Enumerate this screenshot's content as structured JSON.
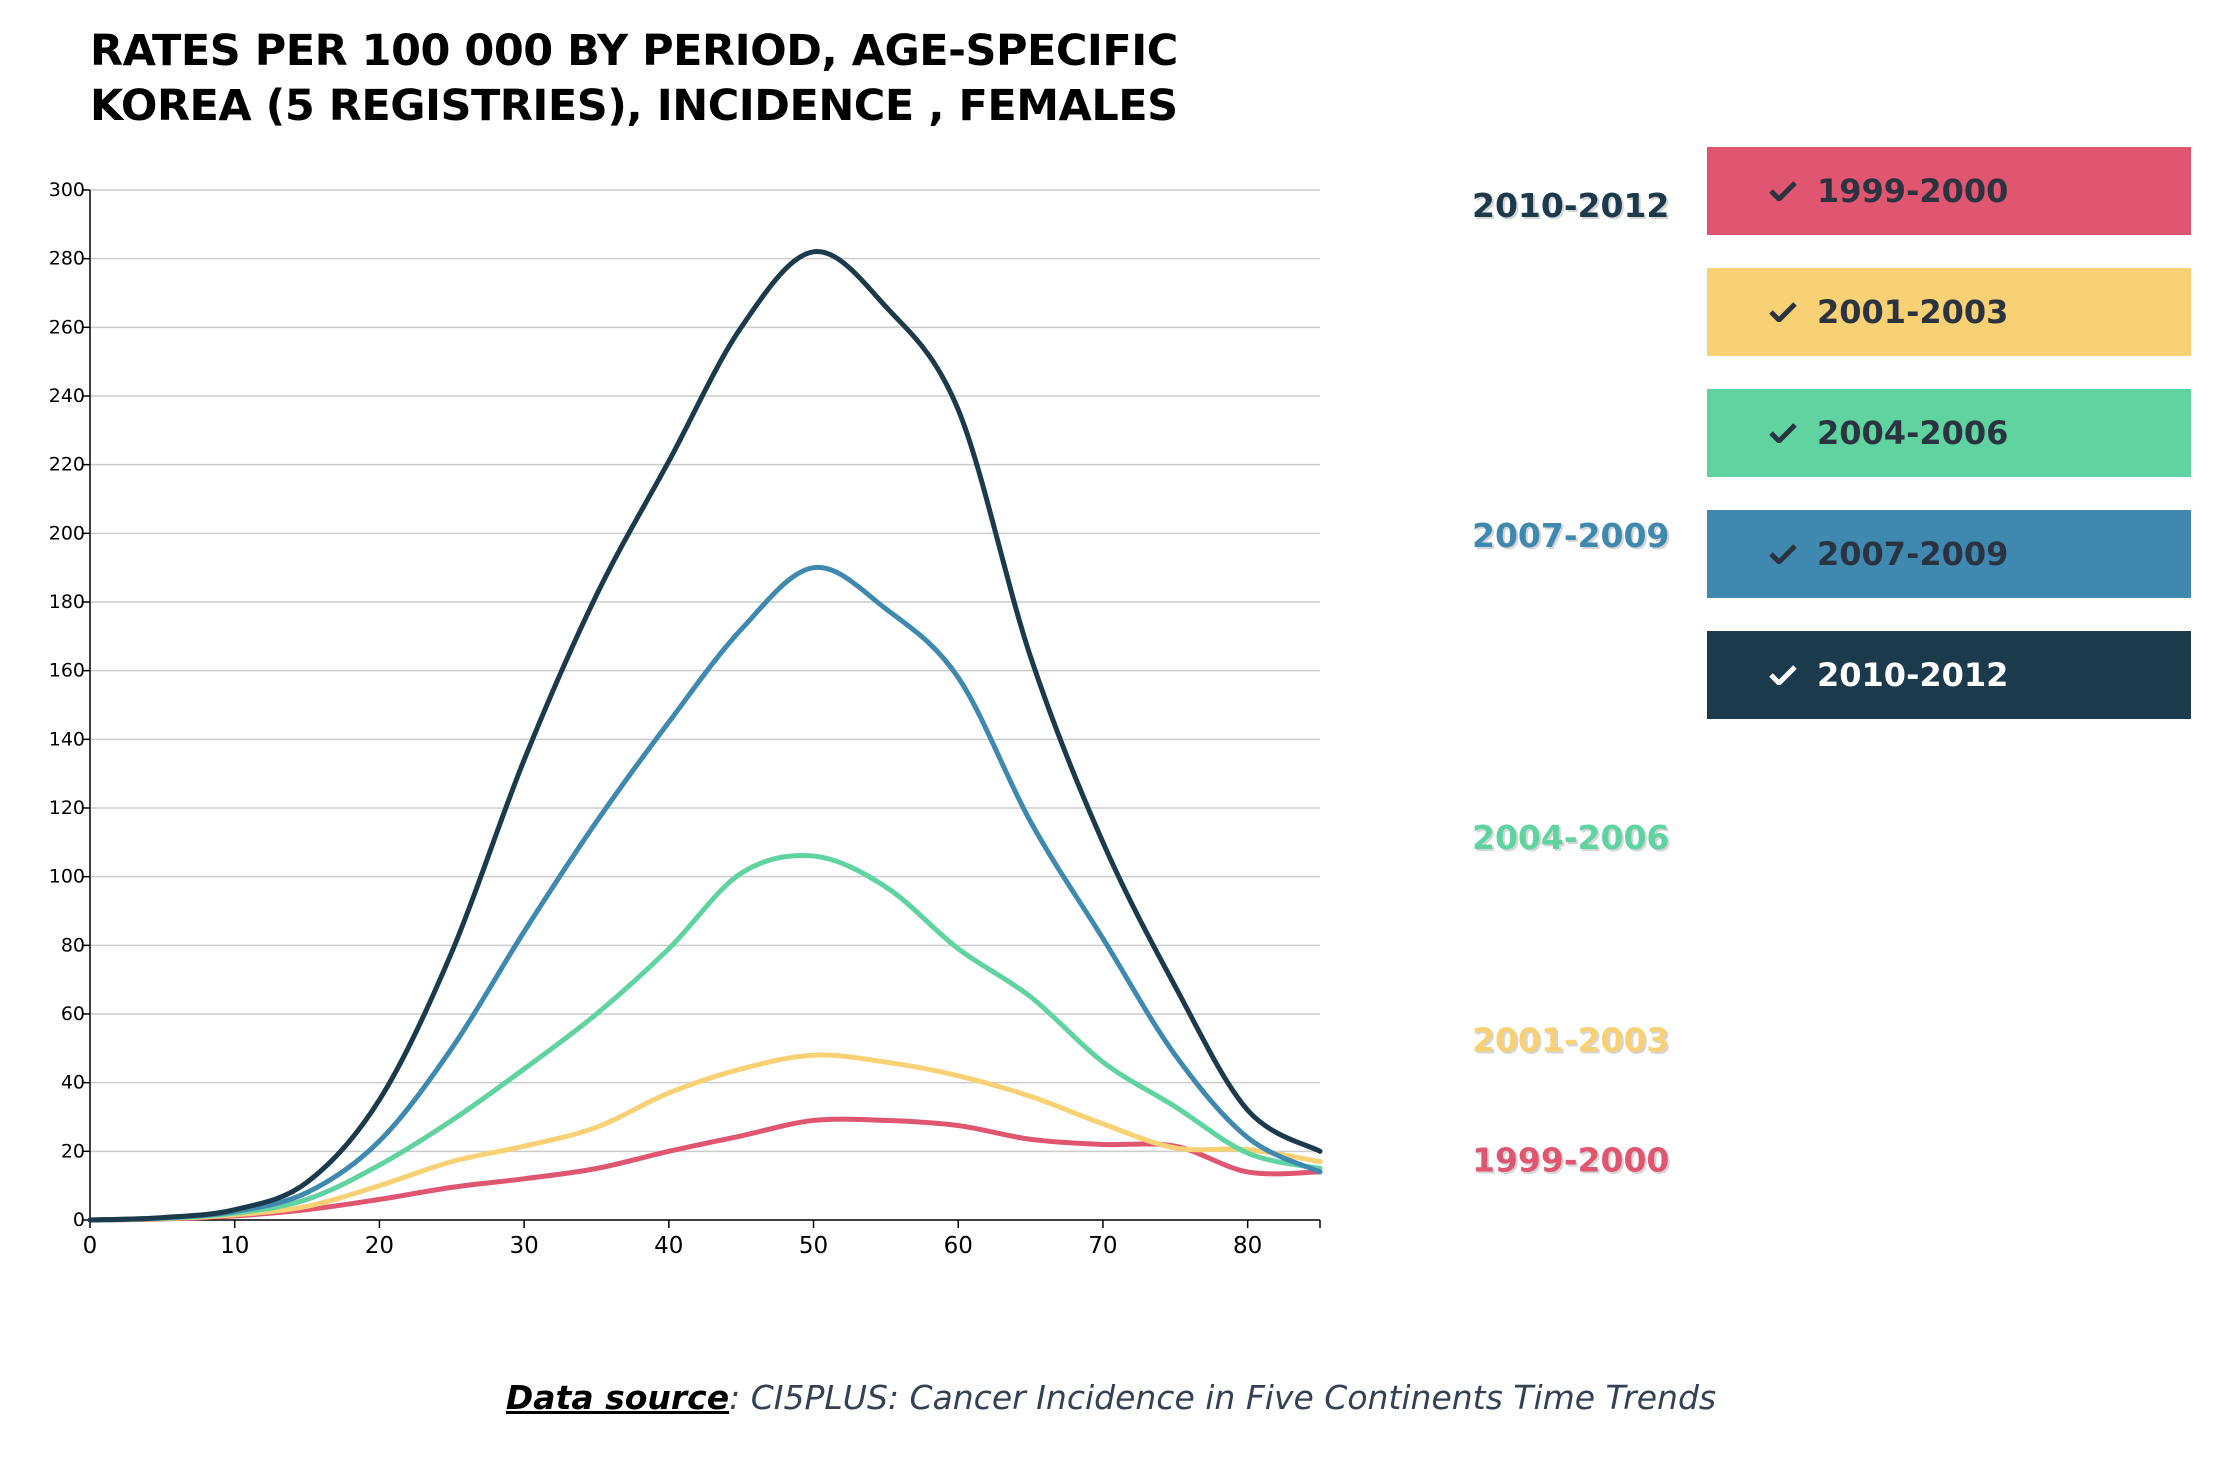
{
  "title": {
    "line1": "RATES PER 100 000 BY PERIOD, AGE-SPECIFIC",
    "line2": "KOREA (5 REGISTRIES), INCIDENCE , FEMALES"
  },
  "legend": [
    {
      "label": "1999-2000",
      "color": "#e05570",
      "text_color": "#2b3340"
    },
    {
      "label": "2001-2003",
      "color": "#f7d174",
      "text_color": "#2b3340"
    },
    {
      "label": "2004-2006",
      "color": "#5fd3a0",
      "text_color": "#2b3340"
    },
    {
      "label": "2007-2009",
      "color": "#3f89b1",
      "text_color": "#2b3340"
    },
    {
      "label": "2010-2012",
      "color": "#1b3a4c",
      "text_color": "#ffffff"
    }
  ],
  "source": {
    "label": "Data source",
    "separator": ": ",
    "text": "CI5PLUS: Cancer Incidence in Five Continents Time Trends"
  },
  "chart_data": {
    "type": "line",
    "title": "RATES PER 100 000 BY PERIOD, AGE-SPECIFIC KOREA (5 REGISTRIES), INCIDENCE , FEMALES",
    "xlabel": "",
    "ylabel": "",
    "xlim": [
      0,
      85
    ],
    "ylim": [
      0,
      300
    ],
    "xticks": [
      0,
      10,
      20,
      30,
      40,
      50,
      60,
      70,
      80
    ],
    "yticks": [
      0,
      20,
      40,
      60,
      80,
      100,
      120,
      140,
      160,
      180,
      200,
      220,
      240,
      260,
      280,
      300
    ],
    "grid": "horizontal",
    "legend_position": "right",
    "x": [
      0,
      5,
      10,
      15,
      20,
      25,
      30,
      35,
      40,
      45,
      50,
      55,
      60,
      65,
      70,
      75,
      80,
      85
    ],
    "series": [
      {
        "name": "1999-2000",
        "color": "#e05570",
        "label_value": 17,
        "values": [
          0,
          0.3,
          1.2,
          3,
          6,
          9.5,
          12,
          15,
          20,
          24.5,
          29,
          29,
          27.5,
          23.5,
          22,
          21.5,
          14,
          14
        ]
      },
      {
        "name": "2001-2003",
        "color": "#f7d174",
        "label_value": 52,
        "values": [
          0,
          0.4,
          1.5,
          4,
          10,
          17,
          21.5,
          27,
          37,
          44,
          48,
          46,
          42,
          36,
          28,
          21,
          20.5,
          17
        ]
      },
      {
        "name": "2004-2006",
        "color": "#5fd3a0",
        "label_value": 111,
        "values": [
          0,
          0.5,
          2,
          6,
          16,
          29,
          44,
          60,
          79,
          101,
          106,
          97,
          79,
          65,
          46,
          33,
          19.5,
          15
        ]
      },
      {
        "name": "2007-2009",
        "color": "#3f89b1",
        "label_value": 199,
        "values": [
          0,
          0.6,
          2.5,
          8,
          23,
          50,
          84,
          116,
          145,
          172,
          190,
          178,
          158,
          116,
          82,
          48,
          24,
          14
        ]
      },
      {
        "name": "2010-2012",
        "color": "#1b3a4c",
        "label_value": 295,
        "values": [
          0,
          0.7,
          3,
          11,
          35,
          78,
          134,
          182,
          221,
          260,
          282,
          266,
          236,
          164,
          110,
          68,
          32,
          20
        ]
      }
    ]
  }
}
